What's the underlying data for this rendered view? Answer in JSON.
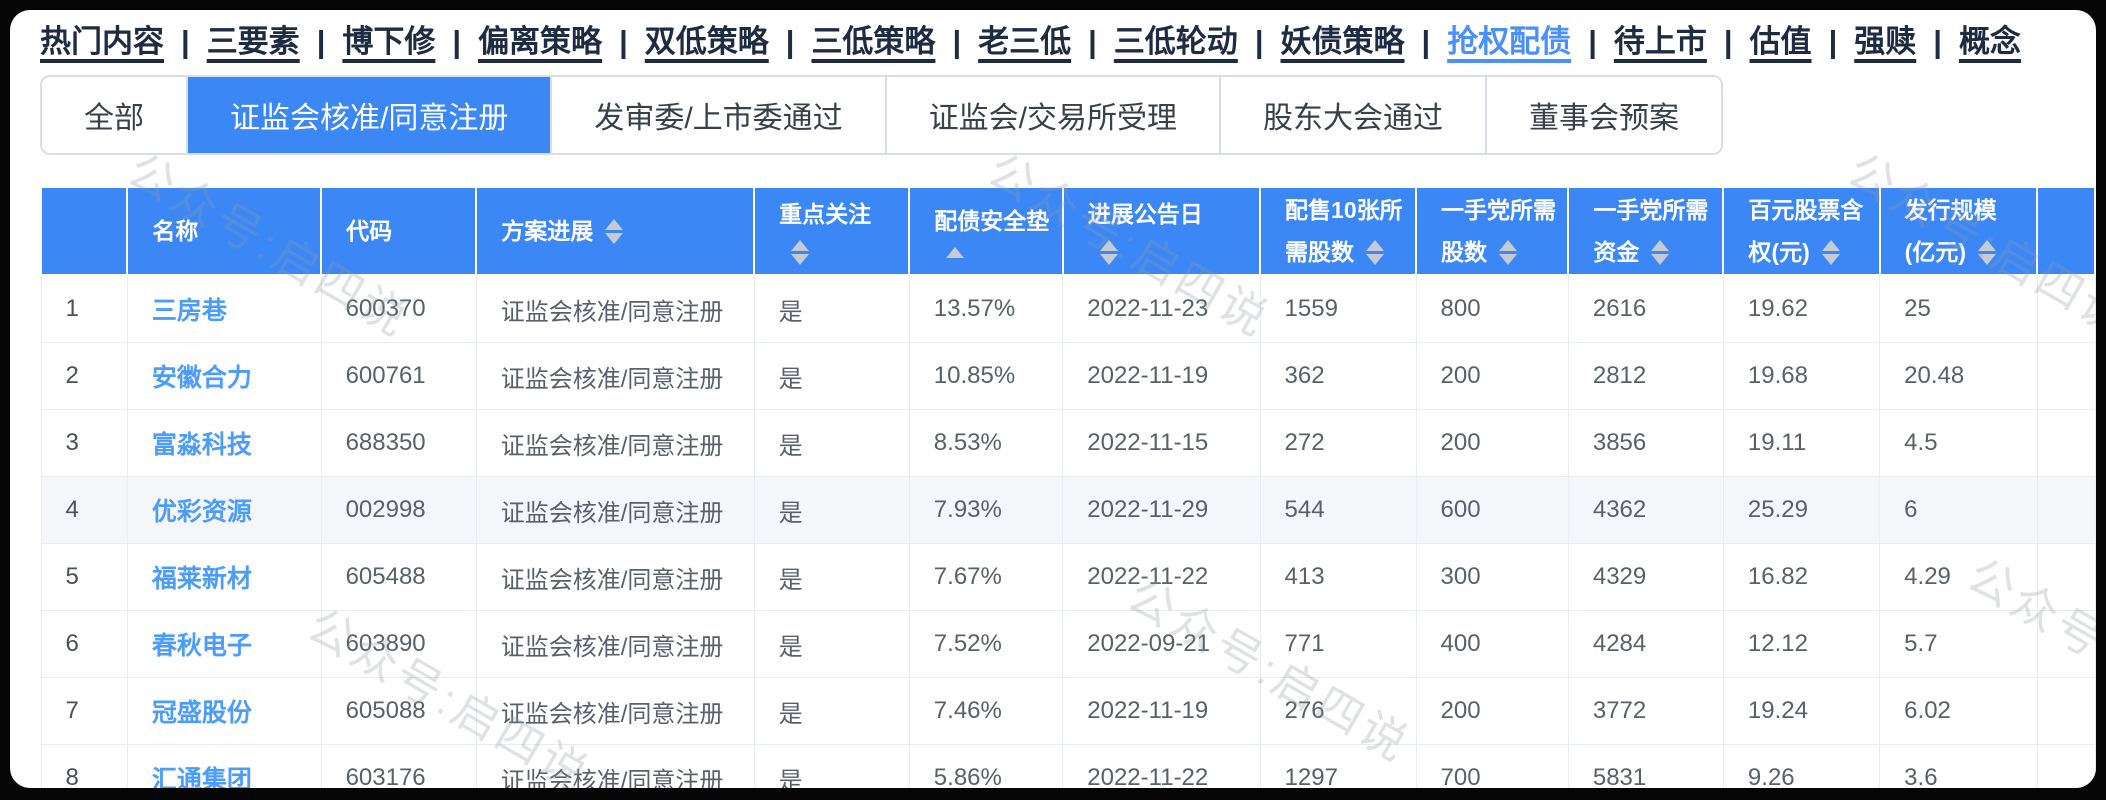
{
  "watermark": {
    "text": "公众号:启四说"
  },
  "colors": {
    "accent": "#3a87f5",
    "link": "#4b9cfc",
    "nav_text": "#1d2b43",
    "nav_active": "#4a90f8",
    "body_text": "#5a5f68",
    "border": "#e9ecf3",
    "row_highlight": "#f5f6fa",
    "sort_caret": "#c5cad3"
  },
  "nav": {
    "separator": "|",
    "items": [
      {
        "label": "热门内容",
        "active": false
      },
      {
        "label": "三要素",
        "active": false
      },
      {
        "label": "博下修",
        "active": false
      },
      {
        "label": "偏离策略",
        "active": false
      },
      {
        "label": "双低策略",
        "active": false
      },
      {
        "label": "三低策略",
        "active": false
      },
      {
        "label": "老三低",
        "active": false
      },
      {
        "label": "三低轮动",
        "active": false
      },
      {
        "label": "妖债策略",
        "active": false
      },
      {
        "label": "抢权配债",
        "active": true
      },
      {
        "label": "待上市",
        "active": false
      },
      {
        "label": "估值",
        "active": false
      },
      {
        "label": "强赎",
        "active": false
      },
      {
        "label": "概念",
        "active": false
      }
    ]
  },
  "tabs": [
    {
      "label": "全部",
      "active": false
    },
    {
      "label": "证监会核准/同意注册",
      "active": true
    },
    {
      "label": "发审委/上市委通过",
      "active": false
    },
    {
      "label": "证监会/交易所受理",
      "active": false
    },
    {
      "label": "股东大会通过",
      "active": false
    },
    {
      "label": "董事会预案",
      "active": false
    }
  ],
  "table": {
    "columns": [
      {
        "id": "index",
        "header_line1": "",
        "header_line2": "",
        "sort": "none"
      },
      {
        "id": "name",
        "header_line1": "名称",
        "header_line2": "",
        "sort": "none"
      },
      {
        "id": "code",
        "header_line1": "代码",
        "header_line2": "",
        "sort": "none"
      },
      {
        "id": "progress",
        "header_line1": "方案进展",
        "header_line2": "",
        "sort": "both",
        "sort_inline": true
      },
      {
        "id": "focus",
        "header_line1": "重点关注",
        "header_line2": "",
        "sort": "both"
      },
      {
        "id": "cushion",
        "header_line1": "配债安全垫",
        "header_line2": "",
        "sort": "up"
      },
      {
        "id": "date",
        "header_line1": "进展公告日",
        "header_line2": "",
        "sort": "both"
      },
      {
        "id": "shares10",
        "header_line1": "配售10张所",
        "header_line2": "需股数",
        "sort": "both"
      },
      {
        "id": "hand_shares",
        "header_line1": "一手党所需",
        "header_line2": "股数",
        "sort": "both"
      },
      {
        "id": "hand_funds",
        "header_line1": "一手党所需",
        "header_line2": "资金",
        "sort": "both"
      },
      {
        "id": "per100",
        "header_line1": "百元股票含",
        "header_line2": "权(元)",
        "sort": "both"
      },
      {
        "id": "size",
        "header_line1": "发行规模",
        "header_line2": "(亿元)",
        "sort": "both"
      },
      {
        "id": "extra",
        "header_line1": "",
        "header_line2": "",
        "sort": "none"
      }
    ],
    "rows": [
      {
        "index": "1",
        "name": "三房巷",
        "code": "600370",
        "progress": "证监会核准/同意注册",
        "focus": "是",
        "cushion": "13.57%",
        "date": "2022-11-23",
        "shares10": "1559",
        "hand_shares": "800",
        "hand_funds": "2616",
        "per100": "19.62",
        "size": "25",
        "extra": "",
        "highlighted": false
      },
      {
        "index": "2",
        "name": "安徽合力",
        "code": "600761",
        "progress": "证监会核准/同意注册",
        "focus": "是",
        "cushion": "10.85%",
        "date": "2022-11-19",
        "shares10": "362",
        "hand_shares": "200",
        "hand_funds": "2812",
        "per100": "19.68",
        "size": "20.48",
        "extra": "",
        "highlighted": false
      },
      {
        "index": "3",
        "name": "富淼科技",
        "code": "688350",
        "progress": "证监会核准/同意注册",
        "focus": "是",
        "cushion": "8.53%",
        "date": "2022-11-15",
        "shares10": "272",
        "hand_shares": "200",
        "hand_funds": "3856",
        "per100": "19.11",
        "size": "4.5",
        "extra": "",
        "highlighted": false
      },
      {
        "index": "4",
        "name": "优彩资源",
        "code": "002998",
        "progress": "证监会核准/同意注册",
        "focus": "是",
        "cushion": "7.93%",
        "date": "2022-11-29",
        "shares10": "544",
        "hand_shares": "600",
        "hand_funds": "4362",
        "per100": "25.29",
        "size": "6",
        "extra": "",
        "highlighted": true
      },
      {
        "index": "5",
        "name": "福莱新材",
        "code": "605488",
        "progress": "证监会核准/同意注册",
        "focus": "是",
        "cushion": "7.67%",
        "date": "2022-11-22",
        "shares10": "413",
        "hand_shares": "300",
        "hand_funds": "4329",
        "per100": "16.82",
        "size": "4.29",
        "extra": "",
        "highlighted": false
      },
      {
        "index": "6",
        "name": "春秋电子",
        "code": "603890",
        "progress": "证监会核准/同意注册",
        "focus": "是",
        "cushion": "7.52%",
        "date": "2022-09-21",
        "shares10": "771",
        "hand_shares": "400",
        "hand_funds": "4284",
        "per100": "12.12",
        "size": "5.7",
        "extra": "",
        "highlighted": false
      },
      {
        "index": "7",
        "name": "冠盛股份",
        "code": "605088",
        "progress": "证监会核准/同意注册",
        "focus": "是",
        "cushion": "7.46%",
        "date": "2022-11-19",
        "shares10": "276",
        "hand_shares": "200",
        "hand_funds": "3772",
        "per100": "19.24",
        "size": "6.02",
        "extra": "",
        "highlighted": false
      },
      {
        "index": "8",
        "name": "汇通集团",
        "code": "603176",
        "progress": "证监会核准/同意注册",
        "focus": "是",
        "cushion": "5.86%",
        "date": "2022-11-22",
        "shares10": "1297",
        "hand_shares": "700",
        "hand_funds": "5831",
        "per100": "9.26",
        "size": "3.6",
        "extra": "",
        "highlighted": false
      }
    ]
  }
}
